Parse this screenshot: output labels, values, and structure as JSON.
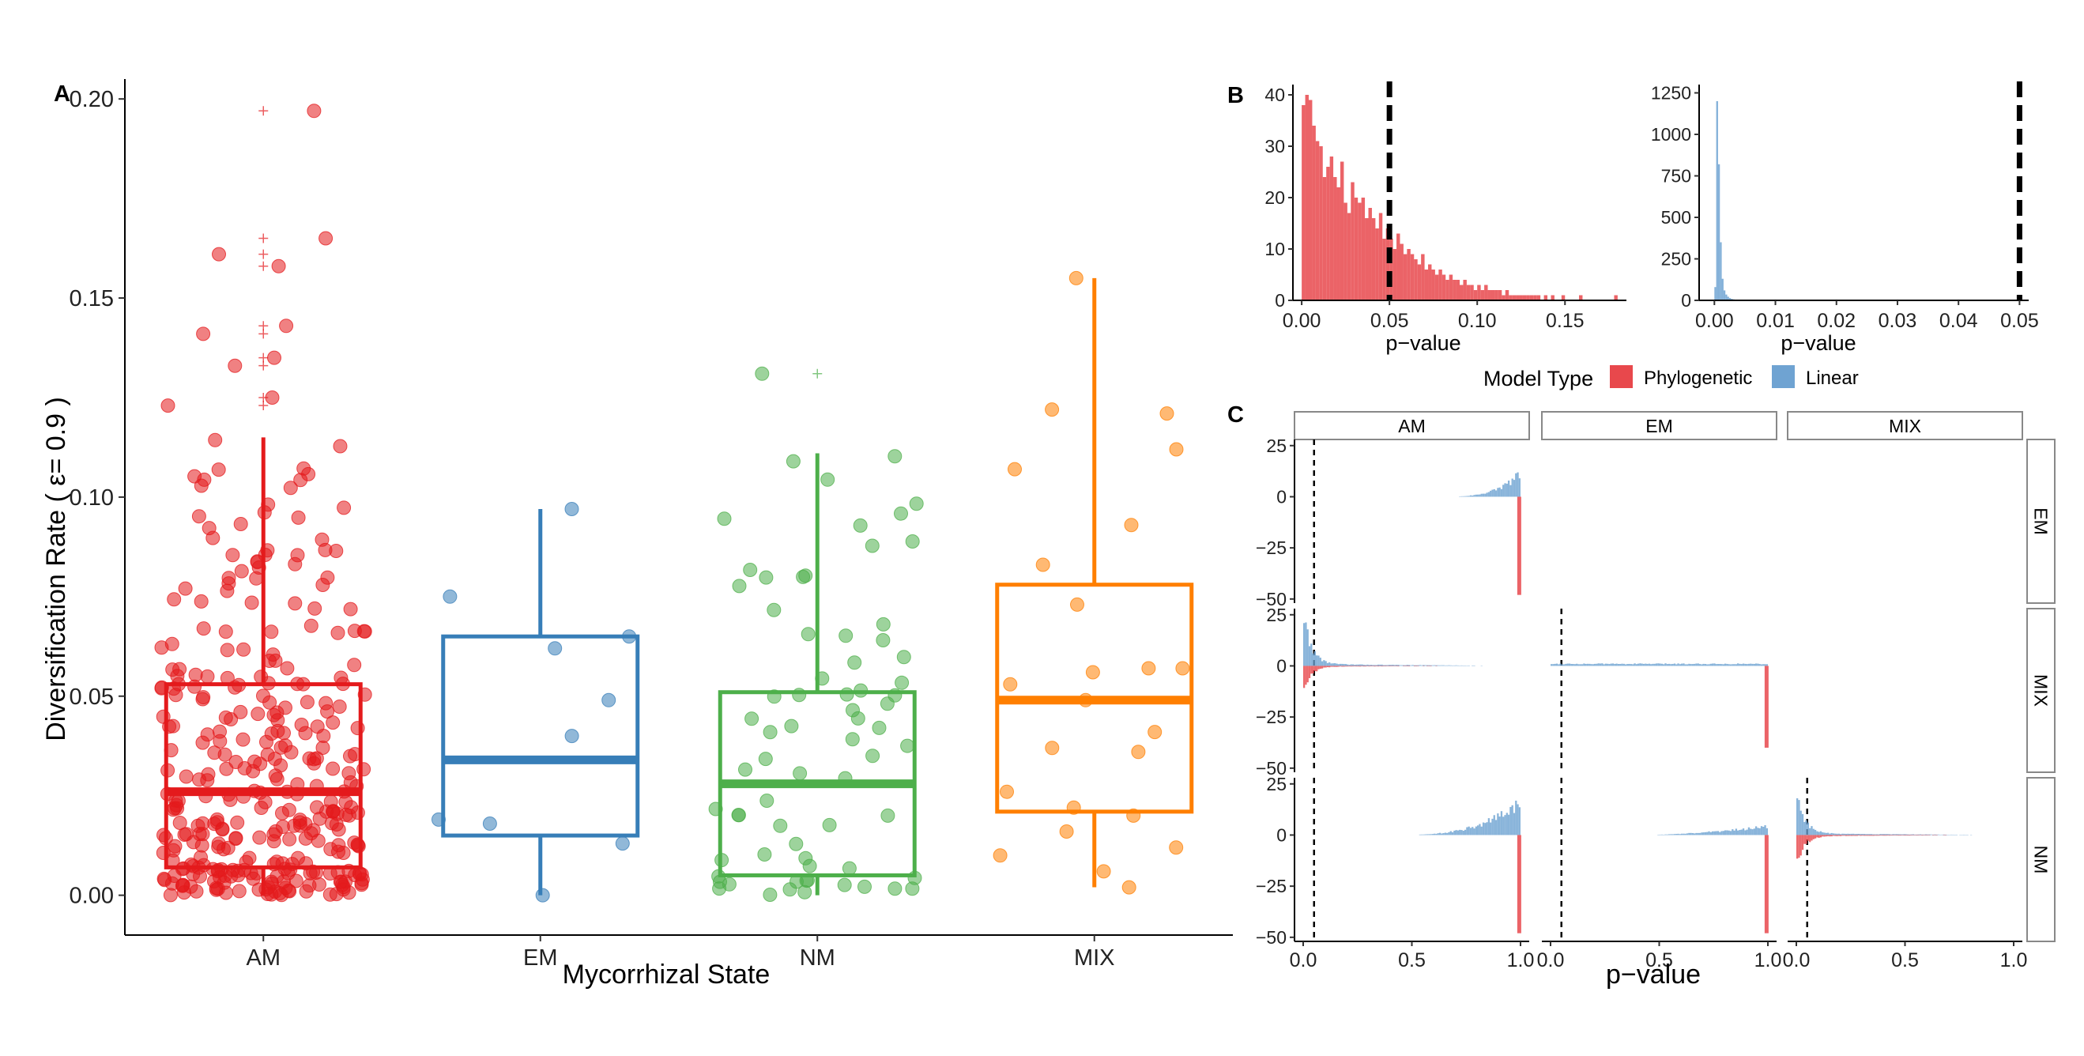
{
  "panel_letters": {
    "a": "A",
    "b": "B",
    "c": "C"
  },
  "colors": {
    "AM": "#e41a1c",
    "EM": "#377eb8",
    "NM": "#4daf4a",
    "MIX": "#ff7f00",
    "phylogenetic": "#e8484c",
    "linear": "#6fa3d2"
  },
  "chart_data": [
    {
      "id": "A",
      "type": "box+jitter",
      "xlabel": "Mycorrhizal State",
      "ylabel": "Diversification Rate ( ε= 0.9 )",
      "ylim": [
        -0.01,
        0.205
      ],
      "yticks": [
        0.0,
        0.05,
        0.1,
        0.15,
        0.2
      ],
      "ytick_labels": [
        "0.00",
        "0.05",
        "0.10",
        "0.15",
        "0.20"
      ],
      "categories": [
        "AM",
        "EM",
        "NM",
        "MIX"
      ],
      "boxes": [
        {
          "group": "AM",
          "q1": 0.007,
          "median": 0.026,
          "q3": 0.053,
          "whisker_low": 0.0,
          "whisker_high": 0.115,
          "outliers": [
            0.123,
            0.125,
            0.133,
            0.135,
            0.141,
            0.143,
            0.158,
            0.161,
            0.165,
            0.197
          ],
          "n_points": 330
        },
        {
          "group": "EM",
          "q1": 0.015,
          "median": 0.034,
          "q3": 0.065,
          "whisker_low": 0.0,
          "whisker_high": 0.097,
          "outliers": [],
          "points": [
            0.097,
            0.075,
            0.065,
            0.062,
            0.049,
            0.04,
            0.019,
            0.018,
            0.013,
            0.0
          ]
        },
        {
          "group": "NM",
          "q1": 0.005,
          "median": 0.028,
          "q3": 0.051,
          "whisker_low": 0.0,
          "whisker_high": 0.111,
          "outliers": [
            0.131
          ],
          "n_points": 70
        },
        {
          "group": "MIX",
          "q1": 0.021,
          "median": 0.049,
          "q3": 0.078,
          "whisker_low": 0.002,
          "whisker_high": 0.155,
          "outliers": [],
          "points": [
            0.155,
            0.122,
            0.121,
            0.112,
            0.107,
            0.093,
            0.083,
            0.073,
            0.057,
            0.057,
            0.056,
            0.053,
            0.049,
            0.041,
            0.037,
            0.036,
            0.026,
            0.022,
            0.02,
            0.016,
            0.012,
            0.01,
            0.006,
            0.002
          ]
        }
      ]
    },
    {
      "id": "B-left",
      "type": "bar",
      "series_color": "phylogenetic",
      "xlabel": "p−value",
      "xlim": [
        -0.005,
        0.185
      ],
      "xticks": [
        0.0,
        0.05,
        0.1,
        0.15
      ],
      "xtick_labels": [
        "0.00",
        "0.05",
        "0.10",
        "0.15"
      ],
      "ylim": [
        0,
        42
      ],
      "yticks": [
        0,
        10,
        20,
        30,
        40
      ],
      "ytick_labels": [
        "0",
        "10",
        "20",
        "30",
        "40"
      ],
      "threshold": 0.05,
      "bin_width": 0.002,
      "counts": [
        38,
        40,
        39,
        34,
        31,
        30,
        24,
        26,
        28,
        24,
        22,
        27,
        19,
        17,
        23,
        20,
        19,
        20,
        16,
        18,
        16,
        14,
        17,
        12,
        14,
        12,
        10,
        13,
        11,
        9,
        10,
        9,
        8,
        7,
        9,
        6,
        7,
        6,
        5,
        6,
        5,
        4,
        5,
        4,
        4,
        3,
        4,
        3,
        3,
        2,
        3,
        2,
        3,
        2,
        2,
        2,
        2,
        1,
        2,
        1,
        1,
        1,
        1,
        1,
        1,
        1,
        1,
        1,
        0,
        1,
        0,
        1,
        0,
        0,
        1,
        0,
        0,
        0,
        0,
        1,
        0,
        0,
        0,
        0,
        0,
        0,
        0,
        0,
        0,
        1
      ]
    },
    {
      "id": "B-right",
      "type": "bar",
      "series_color": "linear",
      "xlabel": "p−value",
      "xlim": [
        -0.0025,
        0.0515
      ],
      "xticks": [
        0.0,
        0.01,
        0.02,
        0.03,
        0.04,
        0.05
      ],
      "xtick_labels": [
        "0.00",
        "0.01",
        "0.02",
        "0.03",
        "0.04",
        "0.05"
      ],
      "ylim": [
        0,
        1300
      ],
      "yticks": [
        0,
        250,
        500,
        750,
        1000,
        1250
      ],
      "ytick_labels": [
        "0",
        "250",
        "500",
        "750",
        "1000",
        "1250"
      ],
      "threshold": 0.05,
      "bin_width": 0.0003,
      "counts": [
        80,
        1200,
        820,
        350,
        130,
        60,
        35,
        22,
        14,
        9,
        6,
        4,
        3,
        2,
        2,
        1,
        1,
        1
      ]
    },
    {
      "id": "C",
      "type": "mirrored-histogram-facets",
      "xlabel": "p−value",
      "col_labels": [
        "AM",
        "EM",
        "MIX"
      ],
      "row_labels": [
        "EM",
        "MIX",
        "NM"
      ],
      "xticks": [
        0.0,
        0.5,
        1.0
      ],
      "xtick_labels": [
        "0.0",
        "0.5",
        "1.0"
      ],
      "xlim": [
        -0.04,
        1.04
      ],
      "ylim": [
        -52,
        28
      ],
      "yticks": [
        25,
        0,
        -25,
        -50
      ],
      "ytick_labels": [
        "25",
        "0",
        "−25",
        "−50"
      ],
      "threshold": 0.05,
      "cells": [
        {
          "row": "EM",
          "col": "AM",
          "blank": false,
          "linear": {
            "start": 0.62,
            "end": 1.0,
            "peak": 11,
            "shape": "rise"
          },
          "phylogenetic": {
            "spike_at": 0.985,
            "value": -48
          }
        },
        {
          "row": "EM",
          "col": "EM",
          "blank": true
        },
        {
          "row": "EM",
          "col": "MIX",
          "blank": true
        },
        {
          "row": "MIX",
          "col": "AM",
          "blank": false,
          "linear": {
            "start": 0.0,
            "end": 1.0,
            "peak": 26,
            "shape": "decay"
          },
          "phylogenetic": {
            "start": 0.0,
            "end": 1.0,
            "peak": -11,
            "shape": "decay"
          }
        },
        {
          "row": "MIX",
          "col": "EM",
          "blank": false,
          "linear": {
            "start": 0.0,
            "end": 1.0,
            "peak": 1,
            "shape": "flat"
          },
          "phylogenetic": {
            "spike_at": 0.985,
            "value": -40
          }
        },
        {
          "row": "MIX",
          "col": "MIX",
          "blank": true
        },
        {
          "row": "NM",
          "col": "AM",
          "blank": false,
          "linear": {
            "start": 0.38,
            "end": 1.0,
            "peak": 16,
            "shape": "rise"
          },
          "phylogenetic": {
            "spike_at": 0.985,
            "value": -48
          }
        },
        {
          "row": "NM",
          "col": "EM",
          "blank": false,
          "linear": {
            "start": 0.4,
            "end": 1.0,
            "peak": 5,
            "shape": "hump"
          },
          "phylogenetic": {
            "spike_at": 0.985,
            "value": -48
          }
        },
        {
          "row": "NM",
          "col": "MIX",
          "blank": false,
          "linear": {
            "start": 0.0,
            "end": 1.0,
            "peak": 22,
            "shape": "decay"
          },
          "phylogenetic": {
            "start": 0.0,
            "end": 1.0,
            "peak": -15,
            "shape": "decay"
          }
        }
      ]
    }
  ],
  "legend": {
    "title": "Model Type",
    "items": [
      {
        "label": "Phylogenetic",
        "color": "phylogenetic"
      },
      {
        "label": "Linear",
        "color": "linear"
      }
    ]
  }
}
